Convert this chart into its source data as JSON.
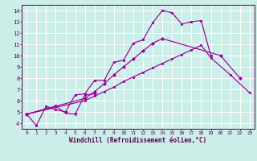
{
  "xlabel": "Windchill (Refroidissement éolien,°C)",
  "bg_color": "#cceee8",
  "line_color": "#990099",
  "grid_color": "#ffffff",
  "xlim": [
    -0.5,
    23.5
  ],
  "ylim": [
    3.5,
    14.5
  ],
  "xticks": [
    0,
    1,
    2,
    3,
    4,
    5,
    6,
    7,
    8,
    9,
    10,
    11,
    12,
    13,
    14,
    15,
    16,
    17,
    18,
    19,
    20,
    21,
    22,
    23
  ],
  "yticks": [
    4,
    5,
    6,
    7,
    8,
    9,
    10,
    11,
    12,
    13,
    14
  ],
  "s1_x": [
    0,
    1,
    2,
    3,
    4,
    5,
    6,
    7,
    8,
    9,
    10,
    11,
    12,
    13,
    14,
    15,
    16,
    17,
    18,
    19
  ],
  "s1_y": [
    4.8,
    3.8,
    5.5,
    5.2,
    5.0,
    6.5,
    6.6,
    7.8,
    7.8,
    9.4,
    9.6,
    11.1,
    11.4,
    12.9,
    14.0,
    13.8,
    12.8,
    13.0,
    13.1,
    10.0
  ],
  "s2_x": [
    0,
    3,
    4,
    5,
    6,
    7
  ],
  "s2_y": [
    4.8,
    5.5,
    4.9,
    4.8,
    6.5,
    6.6
  ],
  "s3_x": [
    0,
    6,
    7,
    8,
    9,
    10,
    11,
    12,
    13,
    14,
    20,
    22
  ],
  "s3_y": [
    4.8,
    6.2,
    6.8,
    7.5,
    8.3,
    9.0,
    9.7,
    10.4,
    11.1,
    11.5,
    10.0,
    8.0
  ],
  "s4_x": [
    0,
    6,
    7,
    8,
    9,
    10,
    11,
    12,
    13,
    14,
    15,
    16,
    17,
    18,
    19,
    21,
    23
  ],
  "s4_y": [
    4.8,
    6.0,
    6.4,
    6.8,
    7.2,
    7.7,
    8.1,
    8.5,
    8.9,
    9.3,
    9.7,
    10.1,
    10.5,
    10.9,
    9.8,
    8.3,
    6.7
  ]
}
